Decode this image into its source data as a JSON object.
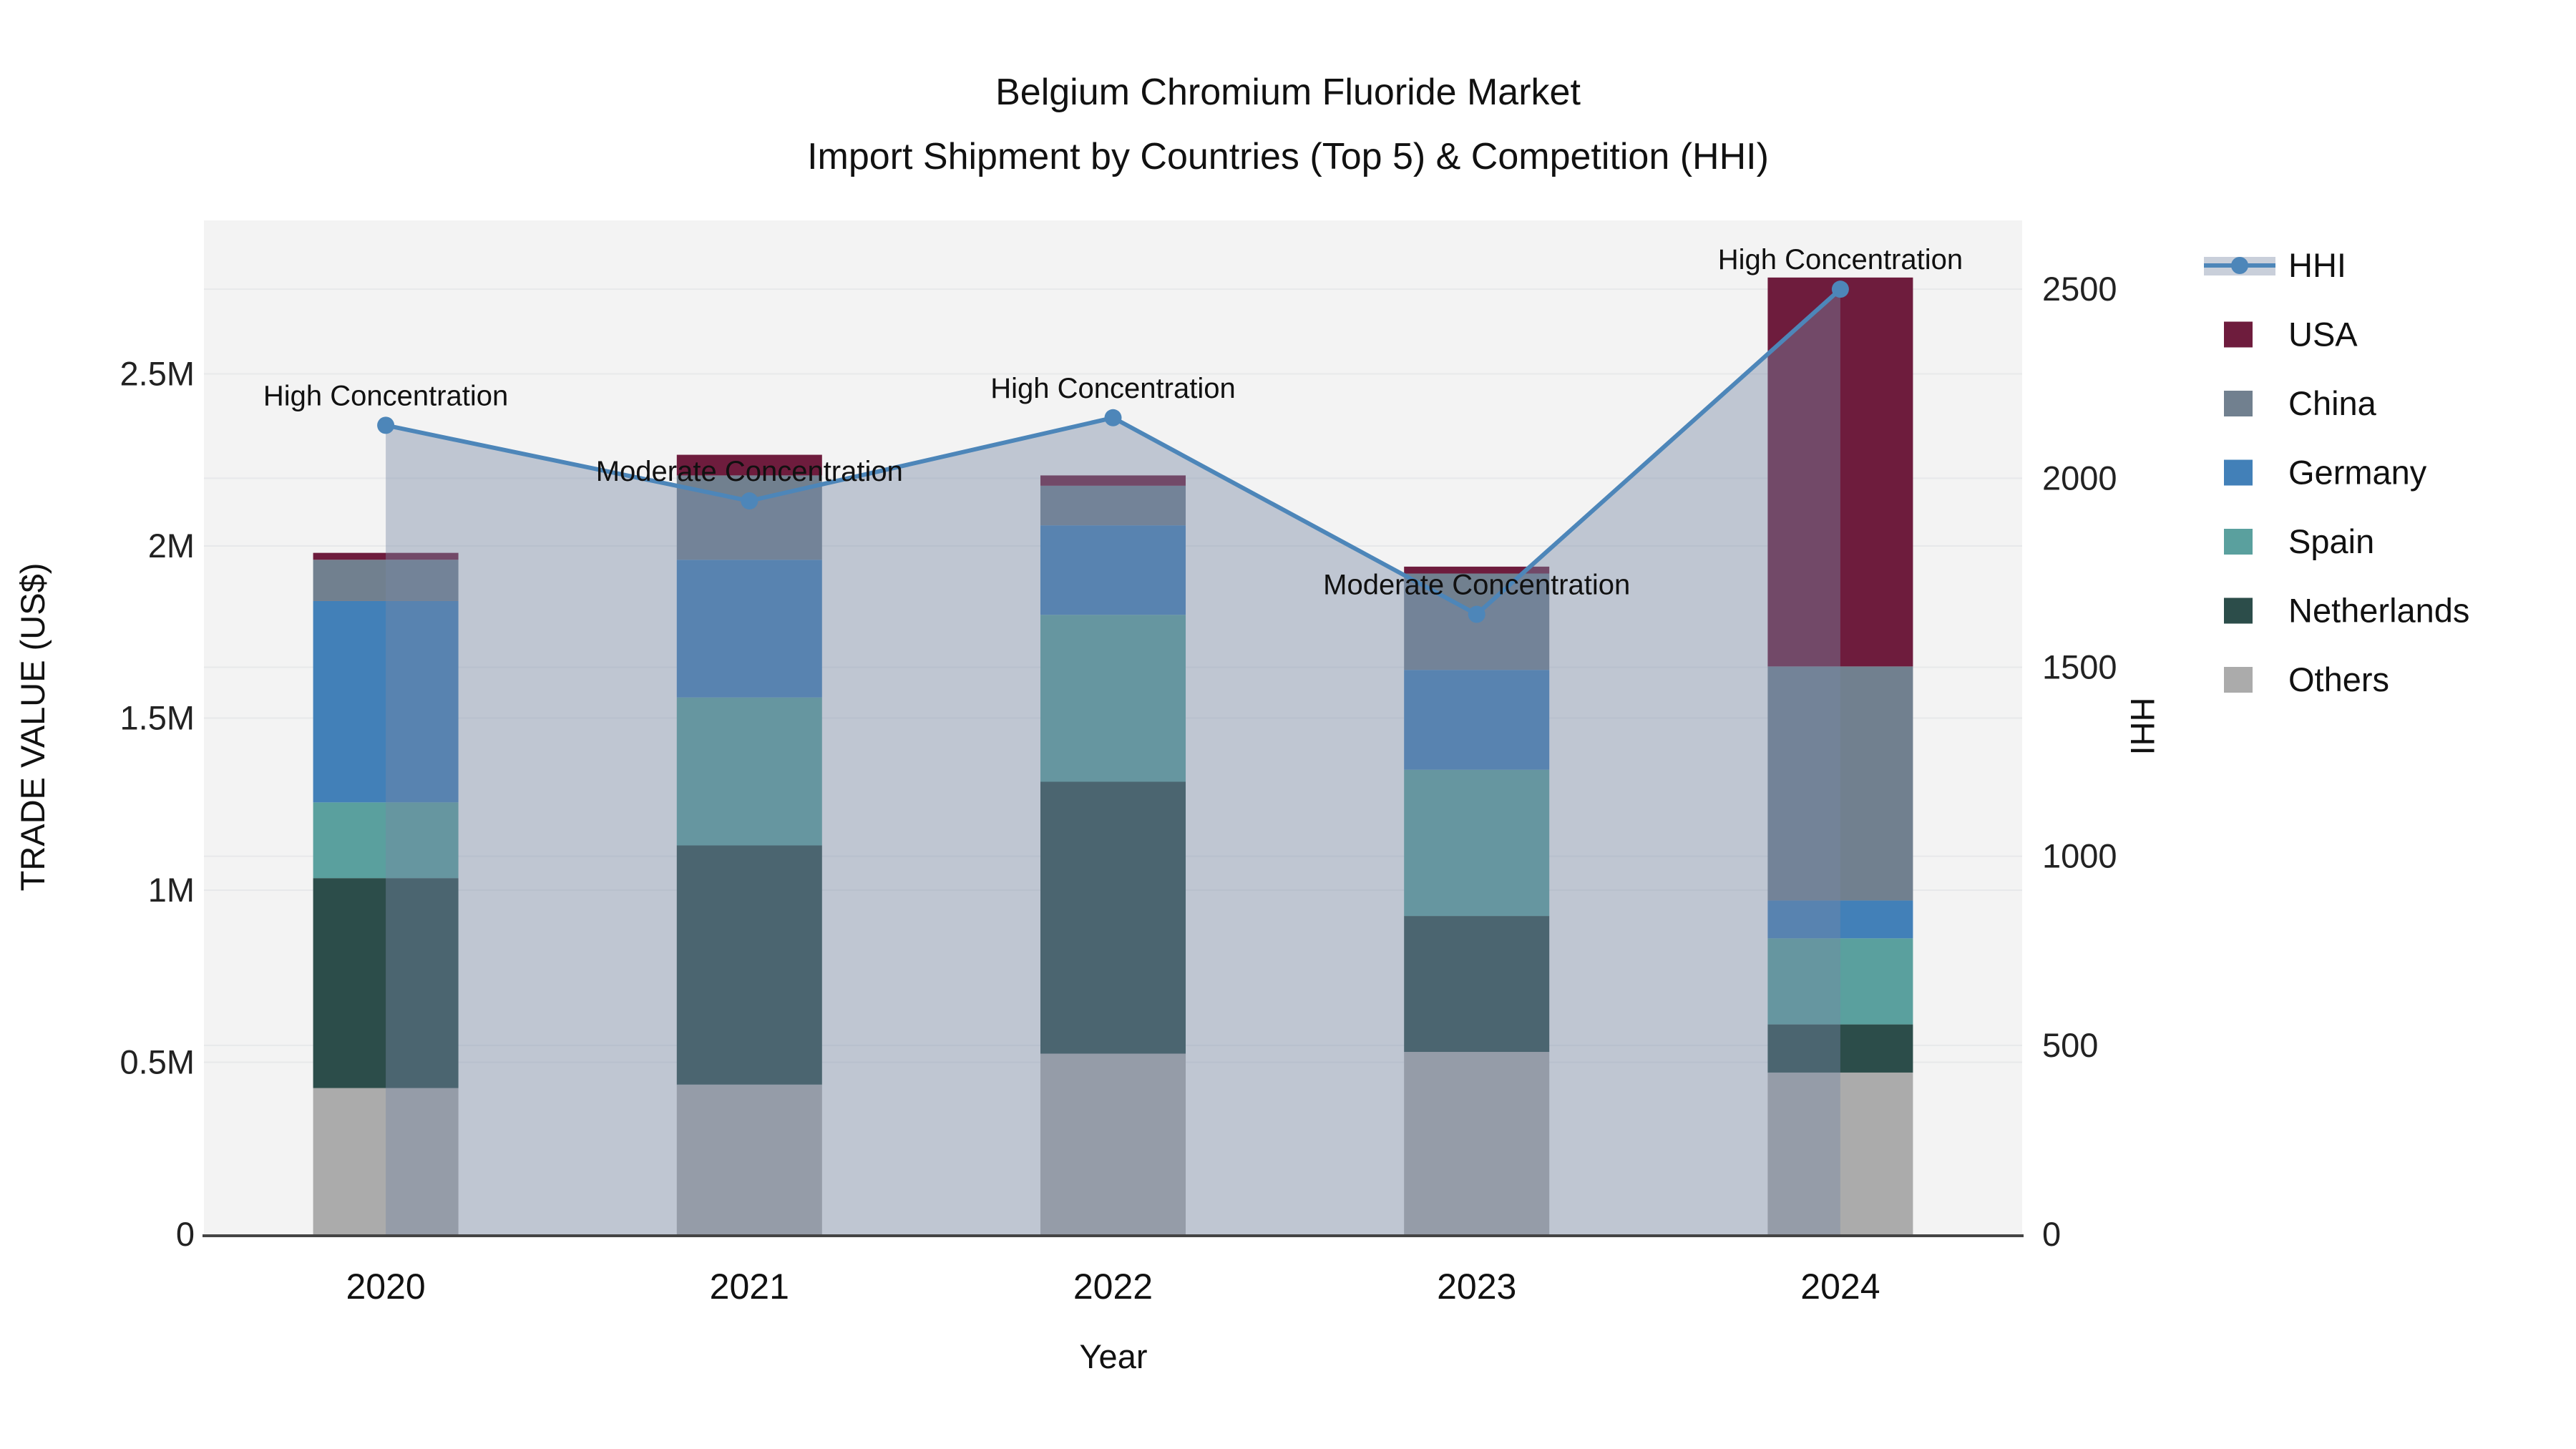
{
  "chart_data": {
    "type": "bar",
    "title": "Belgium Chromium Fluoride Market",
    "subtitle": "Import Shipment by Countries (Top 5) & Competition (HHI)",
    "xlabel": "Year",
    "ylabel_left": "TRADE VALUE (US$)",
    "ylabel_right": "HHI",
    "categories": [
      "2020",
      "2021",
      "2022",
      "2023",
      "2024"
    ],
    "stack_order_note": "bar_series listed bottom-to-top of the stack; values in US$",
    "bar_series": [
      {
        "name": "Others",
        "color": "#ababab",
        "values": [
          425000,
          435000,
          525000,
          530000,
          470000
        ]
      },
      {
        "name": "Netherlands",
        "color": "#2c4d4a",
        "values": [
          610000,
          695000,
          790000,
          395000,
          140000
        ]
      },
      {
        "name": "Spain",
        "color": "#5aa09e",
        "values": [
          220000,
          430000,
          485000,
          425000,
          250000
        ]
      },
      {
        "name": "Germany",
        "color": "#4280b8",
        "values": [
          585000,
          400000,
          260000,
          290000,
          110000
        ]
      },
      {
        "name": "China",
        "color": "#71808f",
        "values": [
          120000,
          245000,
          115000,
          280000,
          680000
        ]
      },
      {
        "name": "USA",
        "color": "#6e1c3d",
        "values": [
          20000,
          60000,
          30000,
          20000,
          1130000
        ]
      }
    ],
    "line_series": {
      "name": "HHI",
      "color": "#4d86b9",
      "area_fill": "rgba(120,135,165,0.42)",
      "values": [
        2140,
        1940,
        2160,
        1640,
        2500
      ]
    },
    "annotations": [
      {
        "category": "2020",
        "text": "High Concentration"
      },
      {
        "category": "2021",
        "text": "Moderate Concentration"
      },
      {
        "category": "2022",
        "text": "High Concentration"
      },
      {
        "category": "2023",
        "text": "Moderate Concentration"
      },
      {
        "category": "2024",
        "text": "High Concentration"
      }
    ],
    "axes": {
      "left": {
        "ticks": [
          "0",
          "0.5M",
          "1M",
          "1.5M",
          "2M",
          "2.5M"
        ],
        "tick_values": [
          0,
          0.5,
          1,
          1.5,
          2,
          2.5
        ],
        "max": 2.946,
        "units": "M US$"
      },
      "right": {
        "ticks": [
          "0",
          "500",
          "1000",
          "1500",
          "2000",
          "2500"
        ],
        "tick_values": [
          0,
          500,
          1000,
          1500,
          2000,
          2500
        ],
        "max": 2682
      }
    },
    "legend_items": [
      {
        "label": "HHI",
        "type": "line",
        "color": "#4d86b9",
        "band": "#c9cfda"
      },
      {
        "label": "USA",
        "type": "box",
        "color": "#6e1c3d"
      },
      {
        "label": "China",
        "type": "box",
        "color": "#71808f"
      },
      {
        "label": "Germany",
        "type": "box",
        "color": "#4280b8"
      },
      {
        "label": "Spain",
        "type": "box",
        "color": "#5aa09e"
      },
      {
        "label": "Netherlands",
        "type": "box",
        "color": "#2c4d4a"
      },
      {
        "label": "Others",
        "type": "box",
        "color": "#ababab"
      }
    ],
    "style": {
      "plot_bg": "#f3f3f3",
      "grid_color": "#e7e8ea",
      "axis_line_color": "#444444"
    }
  }
}
